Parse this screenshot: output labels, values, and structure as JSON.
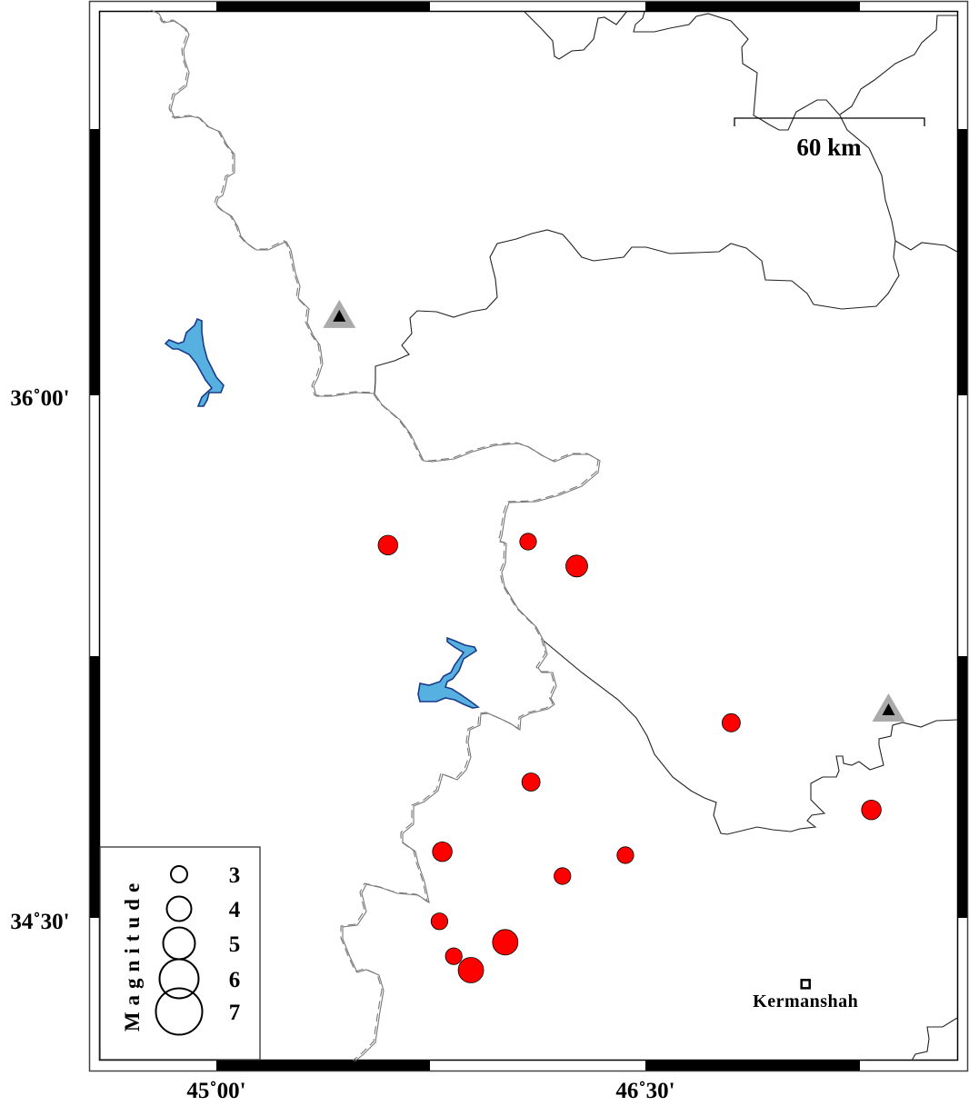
{
  "map": {
    "lon_ticks": [
      {
        "value": 45.0,
        "label": "45˚00'"
      },
      {
        "value": 46.5,
        "label": "46˚30'"
      }
    ],
    "lat_ticks": [
      {
        "value": 36.0,
        "label": "36˚00'"
      },
      {
        "value": 34.5,
        "label": "34˚30'"
      }
    ],
    "scale_bar_label": "60 km",
    "colors": {
      "event_fill": "#ff0000",
      "lake_fill": "#56b0e0",
      "volcano_outer": "#aaaaaa",
      "volcano_inner": "#000000"
    },
    "events": [
      {
        "lon": 45.6,
        "lat": 35.57,
        "mag": 3.2
      },
      {
        "lon": 46.09,
        "lat": 35.58,
        "mag": 2.8
      },
      {
        "lon": 46.26,
        "lat": 35.51,
        "mag": 3.5
      },
      {
        "lon": 46.8,
        "lat": 35.06,
        "mag": 3.0
      },
      {
        "lon": 46.1,
        "lat": 34.89,
        "mag": 3.0
      },
      {
        "lon": 47.29,
        "lat": 34.81,
        "mag": 3.2
      },
      {
        "lon": 45.79,
        "lat": 34.69,
        "mag": 3.2
      },
      {
        "lon": 46.43,
        "lat": 34.68,
        "mag": 2.8
      },
      {
        "lon": 46.21,
        "lat": 34.62,
        "mag": 2.8
      },
      {
        "lon": 45.78,
        "lat": 34.49,
        "mag": 2.8
      },
      {
        "lon": 46.01,
        "lat": 34.43,
        "mag": 4.0
      },
      {
        "lon": 45.83,
        "lat": 34.39,
        "mag": 2.8
      },
      {
        "lon": 45.89,
        "lat": 34.35,
        "mag": 4.0
      }
    ],
    "stations": [
      {
        "lon": 45.43,
        "lat": 36.23,
        "icon": "triangle"
      },
      {
        "lon": 47.35,
        "lat": 35.1,
        "icon": "triangle"
      }
    ],
    "city": {
      "name": "Kermanshah",
      "lon": 47.06,
      "lat": 34.31
    },
    "legend": {
      "title": "Magnitude",
      "items": [
        {
          "mag": 3,
          "label": "3"
        },
        {
          "mag": 4,
          "label": "4"
        },
        {
          "mag": 5,
          "label": "5"
        },
        {
          "mag": 6,
          "label": "6"
        },
        {
          "mag": 7,
          "label": "7"
        }
      ]
    }
  }
}
